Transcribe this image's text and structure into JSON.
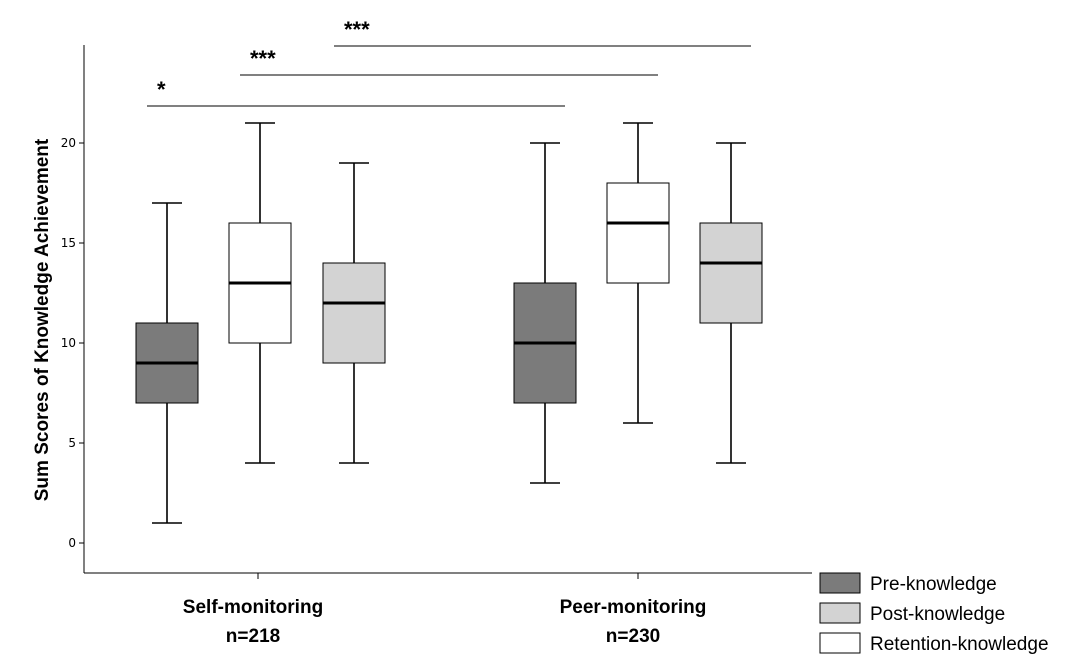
{
  "chart_data": {
    "type": "box",
    "ylabel": "Sum Scores of Knowledge Achievement",
    "ylim": [
      -1.5,
      24
    ],
    "yticks": [
      0,
      5,
      10,
      15,
      20
    ],
    "groups": [
      {
        "name": "Self-monitoring",
        "n_label": "n=218"
      },
      {
        "name": "Peer-monitoring",
        "n_label": "n=230"
      }
    ],
    "series": [
      {
        "name": "Pre-knowledge",
        "color": "#7b7b7b"
      },
      {
        "name": "Post-knowledge",
        "color": "#d3d3d3"
      },
      {
        "name": "Retention-knowledge",
        "color": "#ffffff"
      }
    ],
    "boxes": [
      {
        "group": "Self-monitoring",
        "series": "Pre-knowledge",
        "color": "#7b7b7b",
        "min": 1,
        "q1": 7,
        "median": 9,
        "q3": 11,
        "max": 17
      },
      {
        "group": "Self-monitoring",
        "series": "Retention-knowledge",
        "color": "#ffffff",
        "min": 4,
        "q1": 10,
        "median": 13,
        "q3": 16,
        "max": 21
      },
      {
        "group": "Self-monitoring",
        "series": "Post-knowledge",
        "color": "#d3d3d3",
        "min": 4,
        "q1": 9,
        "median": 12,
        "q3": 14,
        "max": 19
      },
      {
        "group": "Peer-monitoring",
        "series": "Pre-knowledge",
        "color": "#7b7b7b",
        "min": 3,
        "q1": 7,
        "median": 10,
        "q3": 13,
        "max": 20
      },
      {
        "group": "Peer-monitoring",
        "series": "Retention-knowledge",
        "color": "#ffffff",
        "min": 6,
        "q1": 13,
        "median": 16,
        "q3": 18,
        "max": 21
      },
      {
        "group": "Peer-monitoring",
        "series": "Post-knowledge",
        "color": "#d3d3d3",
        "min": 4,
        "q1": 11,
        "median": 14,
        "q3": 16,
        "max": 20
      }
    ],
    "significance": [
      {
        "label": "*",
        "from_box": 0,
        "to_box": 3
      },
      {
        "label": "***",
        "from_box": 1,
        "to_box": 4
      },
      {
        "label": "***",
        "from_box": 2,
        "to_box": 5
      }
    ],
    "legend": [
      {
        "label": "Pre-knowledge",
        "color": "#7b7b7b"
      },
      {
        "label": "Post-knowledge",
        "color": "#d3d3d3"
      },
      {
        "label": "Retention-knowledge",
        "color": "#ffffff"
      }
    ],
    "legend_position": "bottom-right",
    "grid": false
  }
}
